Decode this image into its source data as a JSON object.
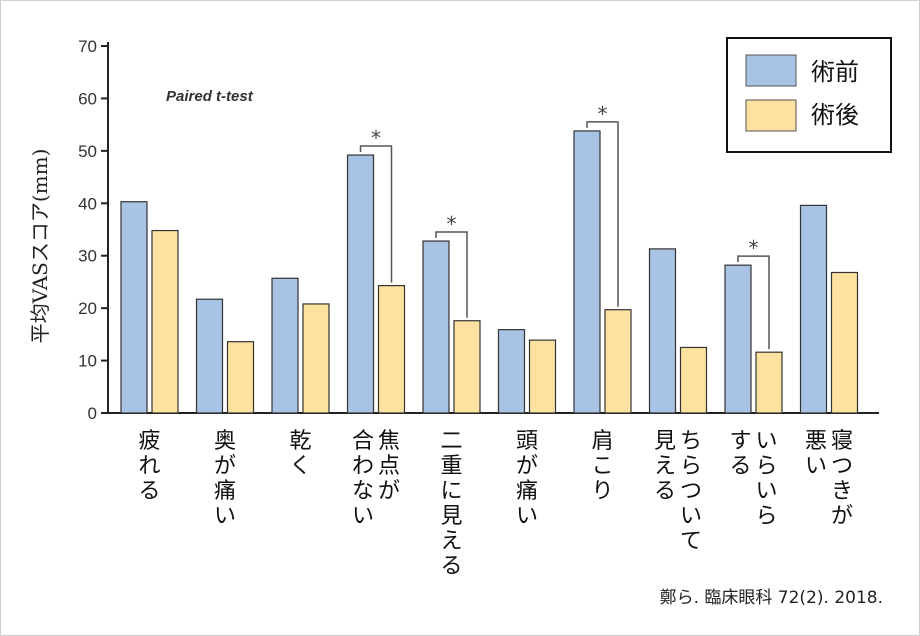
{
  "chart_data": {
    "type": "bar",
    "ylabel": "平均VASスコア(mm)",
    "ylim": [
      0,
      70
    ],
    "yticks": [
      0,
      10,
      20,
      30,
      40,
      50,
      60,
      70
    ],
    "test_label": "Paired t-test",
    "categories": [
      "疲れる",
      "奥が痛い",
      "乾く",
      "焦点が合わない",
      "二重に見える",
      "頭が痛い",
      "肩こり",
      "ちらついて見える",
      "いらいらする",
      "寝つきが悪い"
    ],
    "category_columns": [
      [
        "疲れる"
      ],
      [
        "奥が痛い"
      ],
      [
        "乾く"
      ],
      [
        "焦点が",
        "合わない"
      ],
      [
        "二重に見える"
      ],
      [
        "頭が痛い"
      ],
      [
        "肩こり"
      ],
      [
        "ちらついて",
        "見える"
      ],
      [
        "いらいら",
        "する"
      ],
      [
        "寝つきが",
        "悪い"
      ]
    ],
    "series": [
      {
        "name": "術前",
        "color": "#a8c3e4",
        "values": [
          40.3,
          21.7,
          25.7,
          49.2,
          32.8,
          15.9,
          53.8,
          31.3,
          28.2,
          39.6
        ]
      },
      {
        "name": "術後",
        "color": "#fde1a0",
        "values": [
          34.8,
          13.6,
          20.8,
          24.3,
          17.6,
          13.9,
          19.7,
          12.5,
          11.6,
          26.8
        ]
      }
    ],
    "significance_marker": "*",
    "significant_indices": [
      3,
      4,
      6,
      8
    ],
    "legend_position": "top-right",
    "grid": false
  },
  "citation": "鄭ら. 臨床眼科 72(2). 2018."
}
